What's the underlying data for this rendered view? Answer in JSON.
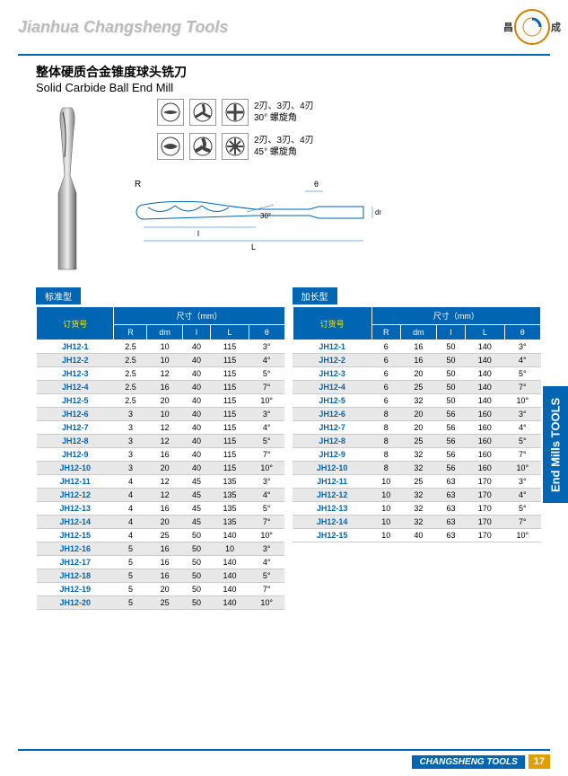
{
  "header": {
    "brand": "Jianhua Changsheng Tools",
    "logo_left": "昌",
    "logo_right": "成"
  },
  "title": {
    "cn": "整体硬质合金锥度球头铣刀",
    "en": "Solid Carbide Ball End Mill"
  },
  "flute_info": {
    "row1_text1": "2刃、3刃、4刃",
    "row1_text2": "30° 螺旋角",
    "row2_text1": "2刃、3刃、4刃",
    "row2_text2": "45° 螺旋角"
  },
  "diagram_labels": {
    "R": "R",
    "l": "l",
    "L": "L",
    "dm": "dm",
    "theta": "θ",
    "angle30": "30°"
  },
  "table1": {
    "label": "标准型",
    "header_group": "尺寸（mm）",
    "cols": [
      "订货号",
      "R",
      "dm",
      "l",
      "L",
      "θ"
    ],
    "rows": [
      [
        "JH12-1",
        "2.5",
        "10",
        "40",
        "115",
        "3°"
      ],
      [
        "JH12-2",
        "2.5",
        "10",
        "40",
        "115",
        "4°"
      ],
      [
        "JH12-3",
        "2.5",
        "12",
        "40",
        "115",
        "5°"
      ],
      [
        "JH12-4",
        "2.5",
        "16",
        "40",
        "115",
        "7°"
      ],
      [
        "JH12-5",
        "2.5",
        "20",
        "40",
        "115",
        "10°"
      ],
      [
        "JH12-6",
        "3",
        "10",
        "40",
        "115",
        "3°"
      ],
      [
        "JH12-7",
        "3",
        "12",
        "40",
        "115",
        "4°"
      ],
      [
        "JH12-8",
        "3",
        "12",
        "40",
        "115",
        "5°"
      ],
      [
        "JH12-9",
        "3",
        "16",
        "40",
        "115",
        "7°"
      ],
      [
        "JH12-10",
        "3",
        "20",
        "40",
        "115",
        "10°"
      ],
      [
        "JH12-11",
        "4",
        "12",
        "45",
        "135",
        "3°"
      ],
      [
        "JH12-12",
        "4",
        "12",
        "45",
        "135",
        "4°"
      ],
      [
        "JH12-13",
        "4",
        "16",
        "45",
        "135",
        "5°"
      ],
      [
        "JH12-14",
        "4",
        "20",
        "45",
        "135",
        "7°"
      ],
      [
        "JH12-15",
        "4",
        "25",
        "50",
        "140",
        "10°"
      ],
      [
        "JH12-16",
        "5",
        "16",
        "50",
        "10",
        "3°"
      ],
      [
        "JH12-17",
        "5",
        "16",
        "50",
        "140",
        "4°"
      ],
      [
        "JH12-18",
        "5",
        "16",
        "50",
        "140",
        "5°"
      ],
      [
        "JH12-19",
        "5",
        "20",
        "50",
        "140",
        "7°"
      ],
      [
        "JH12-20",
        "5",
        "25",
        "50",
        "140",
        "10°"
      ]
    ]
  },
  "table2": {
    "label": "加长型",
    "header_group": "尺寸（mm）",
    "cols": [
      "订货号",
      "R",
      "dm",
      "l",
      "L",
      "θ"
    ],
    "rows": [
      [
        "JH12-1",
        "6",
        "16",
        "50",
        "140",
        "3°"
      ],
      [
        "JH12-2",
        "6",
        "16",
        "50",
        "140",
        "4°"
      ],
      [
        "JH12-3",
        "6",
        "20",
        "50",
        "140",
        "5°"
      ],
      [
        "JH12-4",
        "6",
        "25",
        "50",
        "140",
        "7°"
      ],
      [
        "JH12-5",
        "6",
        "32",
        "50",
        "140",
        "10°"
      ],
      [
        "JH12-6",
        "8",
        "20",
        "56",
        "160",
        "3°"
      ],
      [
        "JH12-7",
        "8",
        "20",
        "56",
        "160",
        "4°"
      ],
      [
        "JH12-8",
        "8",
        "25",
        "56",
        "160",
        "5°"
      ],
      [
        "JH12-9",
        "8",
        "32",
        "56",
        "160",
        "7°"
      ],
      [
        "JH12-10",
        "8",
        "32",
        "56",
        "160",
        "10°"
      ],
      [
        "JH12-11",
        "10",
        "25",
        "63",
        "170",
        "3°"
      ],
      [
        "JH12-12",
        "10",
        "32",
        "63",
        "170",
        "4°"
      ],
      [
        "JH12-13",
        "10",
        "32",
        "63",
        "170",
        "5°"
      ],
      [
        "JH12-14",
        "10",
        "32",
        "63",
        "170",
        "7°"
      ],
      [
        "JH12-15",
        "10",
        "40",
        "63",
        "170",
        "10°"
      ]
    ]
  },
  "side_tab": "End Mills TOOLS",
  "footer": {
    "label": "CHANGSHENG TOOLS",
    "page": "17"
  },
  "colors": {
    "primary": "#0066b3",
    "accent": "#e0a000"
  }
}
